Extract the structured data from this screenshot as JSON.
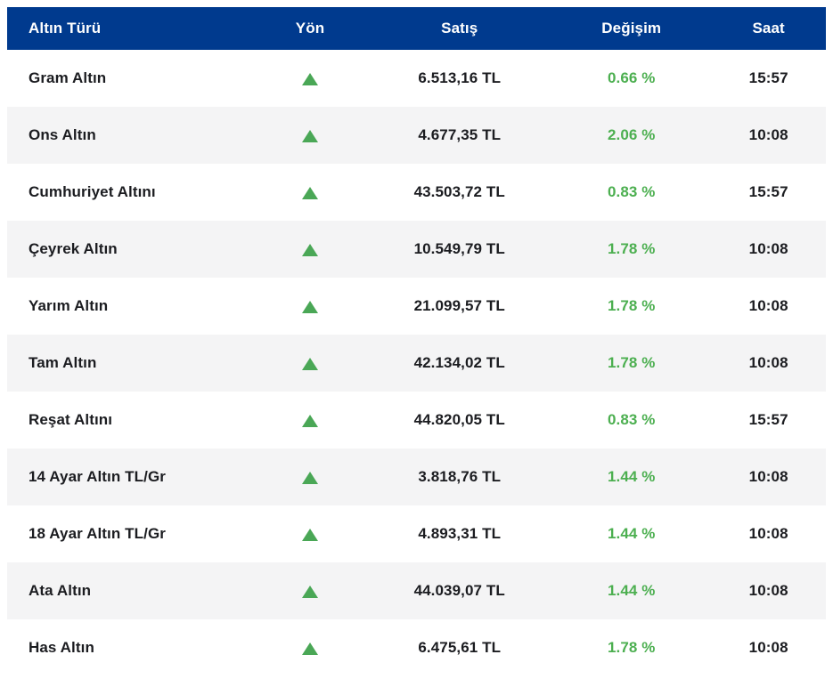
{
  "table": {
    "columns": [
      {
        "key": "name",
        "label": "Altın Türü"
      },
      {
        "key": "direction",
        "label": "Yön"
      },
      {
        "key": "price",
        "label": "Satış"
      },
      {
        "key": "change",
        "label": "Değişim"
      },
      {
        "key": "time",
        "label": "Saat"
      }
    ],
    "rows": [
      {
        "name": "Gram Altın",
        "direction": "up",
        "price": "6.513,16 TL",
        "change": "0.66 %",
        "time": "15:57"
      },
      {
        "name": "Ons Altın",
        "direction": "up",
        "price": "4.677,35 TL",
        "change": "2.06 %",
        "time": "10:08"
      },
      {
        "name": "Cumhuriyet Altını",
        "direction": "up",
        "price": "43.503,72 TL",
        "change": "0.83 %",
        "time": "15:57"
      },
      {
        "name": "Çeyrek Altın",
        "direction": "up",
        "price": "10.549,79 TL",
        "change": "1.78 %",
        "time": "10:08"
      },
      {
        "name": "Yarım Altın",
        "direction": "up",
        "price": "21.099,57 TL",
        "change": "1.78 %",
        "time": "10:08"
      },
      {
        "name": "Tam Altın",
        "direction": "up",
        "price": "42.134,02 TL",
        "change": "1.78 %",
        "time": "10:08"
      },
      {
        "name": "Reşat Altını",
        "direction": "up",
        "price": "44.820,05 TL",
        "change": "0.83 %",
        "time": "15:57"
      },
      {
        "name": "14 Ayar Altın TL/Gr",
        "direction": "up",
        "price": "3.818,76 TL",
        "change": "1.44 %",
        "time": "10:08"
      },
      {
        "name": "18 Ayar Altın TL/Gr",
        "direction": "up",
        "price": "4.893,31 TL",
        "change": "1.44 %",
        "time": "10:08"
      },
      {
        "name": "Ata Altın",
        "direction": "up",
        "price": "44.039,07 TL",
        "change": "1.44 %",
        "time": "10:08"
      },
      {
        "name": "Has Altın",
        "direction": "up",
        "price": "6.475,61 TL",
        "change": "1.78 %",
        "time": "10:08"
      }
    ]
  },
  "colors": {
    "header_bg": "#003a8e",
    "header_text": "#ffffff",
    "row_alt_bg": "#f4f4f5",
    "text_dark": "#1b1c20",
    "up_triangle_green": "#4aa756",
    "change_text_green": "#4caf50"
  }
}
